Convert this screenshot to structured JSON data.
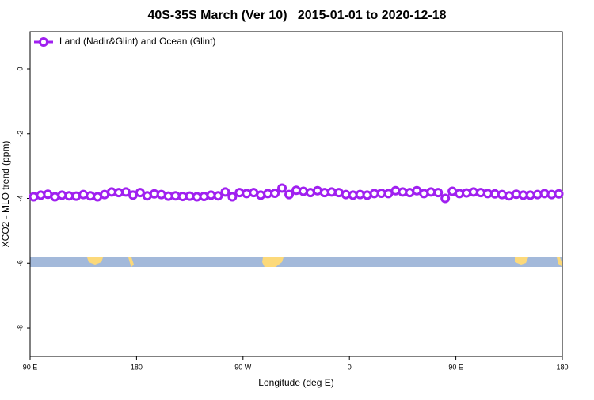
{
  "chart_data": {
    "type": "line",
    "title": "40S-35S March (Ver 10)   2015-01-01 to 2020-12-18",
    "x_label": "Longitude (deg E)",
    "y_label": "XCO2 - MLO trend (ppm)",
    "x": [
      93,
      99,
      105,
      111,
      117,
      123,
      129,
      135,
      141,
      147,
      153,
      159,
      165,
      171,
      177,
      183,
      189,
      195,
      201,
      207,
      213,
      219,
      225,
      231,
      237,
      243,
      249,
      255,
      261,
      267,
      273,
      279,
      285,
      291,
      297,
      303,
      309,
      315,
      321,
      327,
      333,
      339,
      345,
      351,
      357,
      363,
      369,
      375,
      381,
      387,
      393,
      399,
      405,
      411,
      417,
      423,
      429,
      435,
      441,
      447,
      453,
      459,
      465,
      471,
      477,
      483,
      489,
      495,
      501,
      507,
      513,
      519,
      525,
      531,
      537
    ],
    "series": [
      {
        "name": "Land (Nadir&Glint) and Ocean (Glint)",
        "color": "#a020f0",
        "values": [
          -3.95,
          -3.9,
          -3.87,
          -3.95,
          -3.9,
          -3.92,
          -3.93,
          -3.88,
          -3.92,
          -3.95,
          -3.88,
          -3.8,
          -3.82,
          -3.8,
          -3.9,
          -3.82,
          -3.92,
          -3.86,
          -3.88,
          -3.93,
          -3.92,
          -3.94,
          -3.93,
          -3.95,
          -3.94,
          -3.9,
          -3.92,
          -3.8,
          -3.95,
          -3.82,
          -3.85,
          -3.82,
          -3.9,
          -3.85,
          -3.84,
          -3.68,
          -3.88,
          -3.75,
          -3.78,
          -3.82,
          -3.76,
          -3.82,
          -3.8,
          -3.82,
          -3.88,
          -3.9,
          -3.88,
          -3.9,
          -3.85,
          -3.84,
          -3.85,
          -3.76,
          -3.8,
          -3.82,
          -3.76,
          -3.85,
          -3.8,
          -3.82,
          -4.0,
          -3.78,
          -3.85,
          -3.83,
          -3.8,
          -3.82,
          -3.85,
          -3.86,
          -3.88,
          -3.92,
          -3.87,
          -3.9,
          -3.9,
          -3.88,
          -3.85,
          -3.88,
          -3.86
        ]
      }
    ],
    "xlim": [
      90,
      540
    ],
    "xticks": [
      {
        "value": 90,
        "label": "90 E"
      },
      180,
      {
        "value": 270,
        "label": "90 W"
      },
      {
        "value": 360,
        "label": "0"
      },
      {
        "value": 450,
        "label": "90 E"
      },
      {
        "value": 540,
        "label": "180"
      }
    ],
    "ylim": [
      -8.88,
      1.15
    ],
    "yticks": [
      0,
      -2,
      -4,
      -6,
      -8
    ],
    "legend": "top-left"
  }
}
